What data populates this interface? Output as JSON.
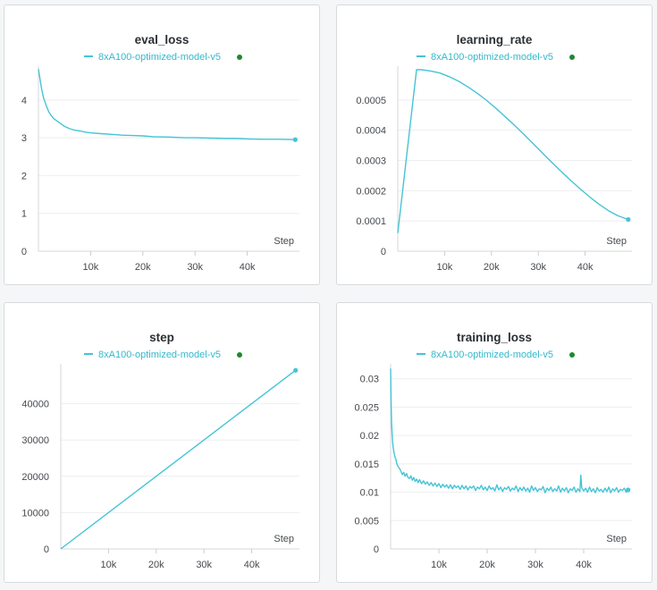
{
  "colors": {
    "series": "#45c4d6",
    "status_dot": "#1e8a2e",
    "legend_text": "#35b8cc"
  },
  "chart_data": [
    {
      "type": "line",
      "title": "eval_loss",
      "xlabel": "Step",
      "xlim": [
        0,
        50000
      ],
      "ylim": [
        0,
        4.8
      ],
      "xticks": [
        10000,
        20000,
        30000,
        40000
      ],
      "xtick_labels": [
        "10k",
        "20k",
        "30k",
        "40k"
      ],
      "yticks": [
        0,
        1,
        2,
        3,
        4
      ],
      "ytick_labels": [
        "0",
        "1",
        "2",
        "3",
        "4"
      ],
      "series": [
        {
          "name": "8xA100-optimized-model-v5",
          "x": [
            0,
            300,
            600,
            1000,
            1500,
            2000,
            2500,
            3000,
            3500,
            4000,
            5000,
            6000,
            7000,
            8000,
            9000,
            10000,
            12000,
            14000,
            16000,
            18000,
            20000,
            22000,
            25000,
            28000,
            30000,
            33000,
            36000,
            38000,
            40000,
            43000,
            46000,
            49200
          ],
          "y": [
            4.82,
            4.55,
            4.3,
            4.05,
            3.85,
            3.68,
            3.58,
            3.5,
            3.45,
            3.4,
            3.3,
            3.24,
            3.2,
            3.18,
            3.15,
            3.13,
            3.11,
            3.09,
            3.07,
            3.06,
            3.05,
            3.03,
            3.02,
            3.0,
            3.0,
            2.99,
            2.98,
            2.98,
            2.97,
            2.96,
            2.96,
            2.95
          ]
        }
      ]
    },
    {
      "type": "line",
      "title": "learning_rate",
      "xlabel": "Step",
      "xlim": [
        0,
        50000
      ],
      "ylim": [
        0,
        0.0006
      ],
      "xticks": [
        10000,
        20000,
        30000,
        40000
      ],
      "xtick_labels": [
        "10k",
        "20k",
        "30k",
        "40k"
      ],
      "yticks": [
        0,
        0.0001,
        0.0002,
        0.0003,
        0.0004,
        0.0005
      ],
      "ytick_labels": [
        "0",
        "0.0001",
        "0.0002",
        "0.0003",
        "0.0004",
        "0.0005"
      ],
      "series": [
        {
          "name": "8xA100-optimized-model-v5",
          "x": [
            0,
            4000,
            5000,
            7000,
            9000,
            11000,
            13000,
            15000,
            17000,
            19000,
            21000,
            23000,
            25000,
            27000,
            29000,
            31000,
            33000,
            35000,
            37000,
            39000,
            41000,
            43000,
            45000,
            47000,
            49200
          ],
          "y": [
            6e-05,
            0.0006,
            0.0006,
            0.000596,
            0.000589,
            0.000577,
            0.000562,
            0.000543,
            0.000522,
            0.000498,
            0.000472,
            0.000444,
            0.000415,
            0.000385,
            0.000354,
            0.000323,
            0.000292,
            0.000262,
            0.000233,
            0.000205,
            0.000179,
            0.000155,
            0.000134,
            0.000117,
            0.000105
          ]
        }
      ]
    },
    {
      "type": "line",
      "title": "step",
      "xlabel": "Step",
      "xlim": [
        0,
        50000
      ],
      "ylim": [
        0,
        50000
      ],
      "xticks": [
        10000,
        20000,
        30000,
        40000
      ],
      "xtick_labels": [
        "10k",
        "20k",
        "30k",
        "40k"
      ],
      "yticks": [
        0,
        10000,
        20000,
        30000,
        40000
      ],
      "ytick_labels": [
        "0",
        "10000",
        "20000",
        "30000",
        "40000"
      ],
      "series": [
        {
          "name": "8xA100-optimized-model-v5",
          "x": [
            0,
            49200
          ],
          "y": [
            0,
            49200
          ]
        }
      ]
    },
    {
      "type": "line",
      "title": "training_loss",
      "xlabel": "Step",
      "xlim": [
        0,
        50000
      ],
      "ylim": [
        0,
        0.032
      ],
      "xticks": [
        10000,
        20000,
        30000,
        40000
      ],
      "xtick_labels": [
        "10k",
        "20k",
        "30k",
        "40k"
      ],
      "yticks": [
        0,
        0.005,
        0.01,
        0.015,
        0.02,
        0.025,
        0.03
      ],
      "ytick_labels": [
        "0",
        "0.005",
        "0.01",
        "0.015",
        "0.02",
        "0.025",
        "0.03"
      ],
      "series": [
        {
          "name": "8xA100-optimized-model-v5",
          "x": [
            0,
            100,
            200,
            300,
            400,
            500,
            700,
            900,
            1100,
            1300,
            1500,
            1800,
            2100,
            2400,
            2700,
            3000,
            3300,
            3600,
            3900,
            4200,
            4500,
            4800,
            5100,
            5400,
            5700,
            6000,
            6400,
            6800,
            7200,
            7600,
            8000,
            8400,
            8800,
            9200,
            9600,
            10000,
            10400,
            10800,
            11200,
            11600,
            12000,
            12400,
            12800,
            13200,
            13600,
            14000,
            14400,
            14800,
            15200,
            15600,
            16000,
            16400,
            16800,
            17200,
            17600,
            18000,
            18400,
            18800,
            19200,
            19600,
            20000,
            20400,
            20800,
            21200,
            21600,
            22000,
            22400,
            22800,
            23200,
            23600,
            24000,
            24400,
            24800,
            25200,
            25600,
            26000,
            26400,
            26800,
            27200,
            27600,
            28000,
            28400,
            28800,
            29200,
            29600,
            30000,
            30400,
            30800,
            31200,
            31600,
            32000,
            32400,
            32800,
            33200,
            33600,
            34000,
            34400,
            34800,
            35200,
            35600,
            36000,
            36400,
            36800,
            37200,
            37600,
            38000,
            38400,
            38800,
            39200,
            39400,
            39600,
            40000,
            40400,
            40800,
            41200,
            41600,
            42000,
            42400,
            42800,
            43200,
            43600,
            44000,
            44400,
            44800,
            45200,
            45600,
            46000,
            46400,
            46800,
            47200,
            47600,
            48000,
            48400,
            48800,
            49200
          ],
          "y": [
            0.0318,
            0.026,
            0.022,
            0.0205,
            0.019,
            0.018,
            0.017,
            0.0162,
            0.0158,
            0.015,
            0.0146,
            0.0142,
            0.0138,
            0.0131,
            0.0135,
            0.0128,
            0.0133,
            0.0126,
            0.0124,
            0.0129,
            0.0121,
            0.0126,
            0.0119,
            0.0123,
            0.0117,
            0.0122,
            0.0115,
            0.012,
            0.0114,
            0.0118,
            0.0112,
            0.0117,
            0.0111,
            0.0116,
            0.011,
            0.0115,
            0.0108,
            0.0114,
            0.0109,
            0.0113,
            0.0107,
            0.0113,
            0.0106,
            0.0112,
            0.0108,
            0.0111,
            0.0105,
            0.0112,
            0.0106,
            0.0111,
            0.0104,
            0.011,
            0.0107,
            0.0111,
            0.0103,
            0.0109,
            0.0106,
            0.0112,
            0.0104,
            0.0109,
            0.0103,
            0.0111,
            0.0105,
            0.0108,
            0.0102,
            0.0113,
            0.0104,
            0.0109,
            0.0101,
            0.0108,
            0.0105,
            0.011,
            0.0102,
            0.0107,
            0.0104,
            0.0111,
            0.0101,
            0.0108,
            0.0103,
            0.0109,
            0.0102,
            0.0107,
            0.01,
            0.0111,
            0.0103,
            0.0108,
            0.0101,
            0.0106,
            0.0104,
            0.011,
            0.0099,
            0.0107,
            0.0103,
            0.0109,
            0.0101,
            0.0106,
            0.0102,
            0.0111,
            0.01,
            0.0107,
            0.0102,
            0.0108,
            0.0099,
            0.0106,
            0.0103,
            0.0109,
            0.01,
            0.0106,
            0.0101,
            0.013,
            0.0108,
            0.0102,
            0.0107,
            0.01,
            0.0109,
            0.0101,
            0.0106,
            0.0099,
            0.0108,
            0.0102,
            0.0105,
            0.01,
            0.0107,
            0.0101,
            0.0109,
            0.0099,
            0.0106,
            0.0102,
            0.0108,
            0.01,
            0.0105,
            0.0103,
            0.0107,
            0.01,
            0.0104
          ]
        }
      ]
    }
  ]
}
